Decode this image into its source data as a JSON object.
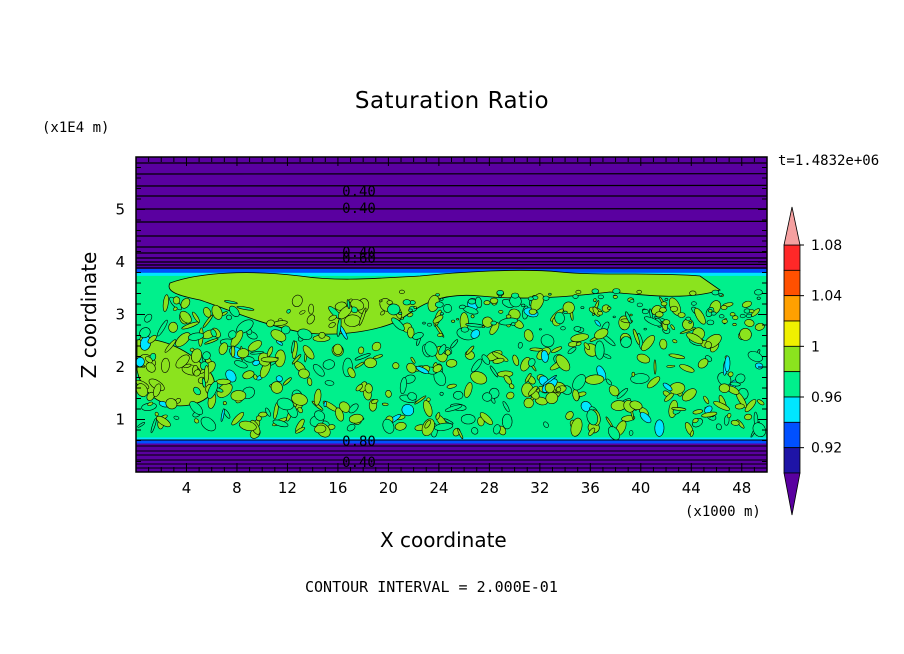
{
  "chart_data": {
    "type": "heatmap",
    "title": "Saturation Ratio",
    "xlabel": "X coordinate",
    "ylabel": "Z coordinate",
    "x_units": "(x1000 m)",
    "y_units": "(x1E4 m)",
    "time_label": "t=1.4832e+06",
    "footer": "CONTOUR INTERVAL = 2.000E-01",
    "xlim": [
      0,
      50
    ],
    "ylim": [
      0,
      6
    ],
    "x_ticks": [
      "4",
      "8",
      "12",
      "16",
      "20",
      "24",
      "28",
      "32",
      "36",
      "40",
      "44",
      "48"
    ],
    "y_ticks": [
      "1",
      "2",
      "3",
      "4",
      "5"
    ],
    "contour_labels": [
      "0.40",
      "0.40",
      "0.40",
      "0.60",
      "0.80",
      "0.40"
    ],
    "colorbar": {
      "tick_labels": [
        "0.92",
        "0.96",
        "1",
        "1.04",
        "1.08"
      ],
      "level_colors": [
        "#5a00a0",
        "#1e14a6",
        "#0050ff",
        "#00e6ff",
        "#00f08c",
        "#8be31e",
        "#f0f000",
        "#ffa000",
        "#ff5000",
        "#ff2828",
        "#f5a0a0"
      ],
      "under_color": "#5a00a0",
      "over_color": "#f5a0a0"
    },
    "field": {
      "upper_dry_layer": {
        "z_from": 3.85,
        "z_to": 6.0,
        "value": 0.4
      },
      "moist_layer": {
        "z_from": 0.6,
        "z_to": 3.85,
        "value_range": [
          0.96,
          1.02
        ]
      },
      "lower_dry_layer": {
        "z_from": 0.0,
        "z_to": 0.6,
        "value": 0.4
      }
    }
  }
}
